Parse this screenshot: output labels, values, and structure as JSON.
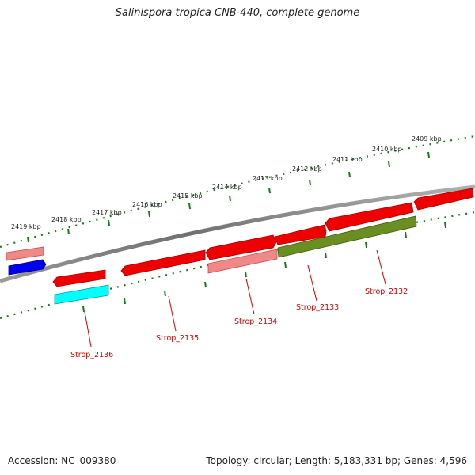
{
  "title": "Salinispora tropica CNB-440, complete genome",
  "footer": {
    "accession": "Accession: NC_009380",
    "info": "Topology: circular; Length: 5,183,331 bp; Genes: 4,596"
  },
  "scale": {
    "ticks": [
      {
        "label": "2409 kbp"
      },
      {
        "label": "2410 kbp"
      },
      {
        "label": "2411 kbp"
      },
      {
        "label": "2412 kbp"
      },
      {
        "label": "2413 kbp"
      },
      {
        "label": "2414 kbp"
      },
      {
        "label": "2415 kbp"
      },
      {
        "label": "2416 kbp"
      },
      {
        "label": "2417 kbp"
      },
      {
        "label": "2418 kbp"
      },
      {
        "label": "2419 kbp"
      }
    ]
  },
  "genes": [
    {
      "label": "Strop_2132"
    },
    {
      "label": "Strop_2133"
    },
    {
      "label": "Strop_2134"
    },
    {
      "label": "Strop_2135"
    },
    {
      "label": "Strop_2136"
    }
  ],
  "colors": {
    "backbone": "#808080",
    "tick": "#1a7a1a",
    "gene_red": "#ee0000",
    "gene_pink": "#f08888",
    "gene_olive": "#6b8e23",
    "gene_blue": "#0000ee",
    "gene_cyan": "#00ffff",
    "label_red": "#cc0000",
    "text": "#222222"
  }
}
